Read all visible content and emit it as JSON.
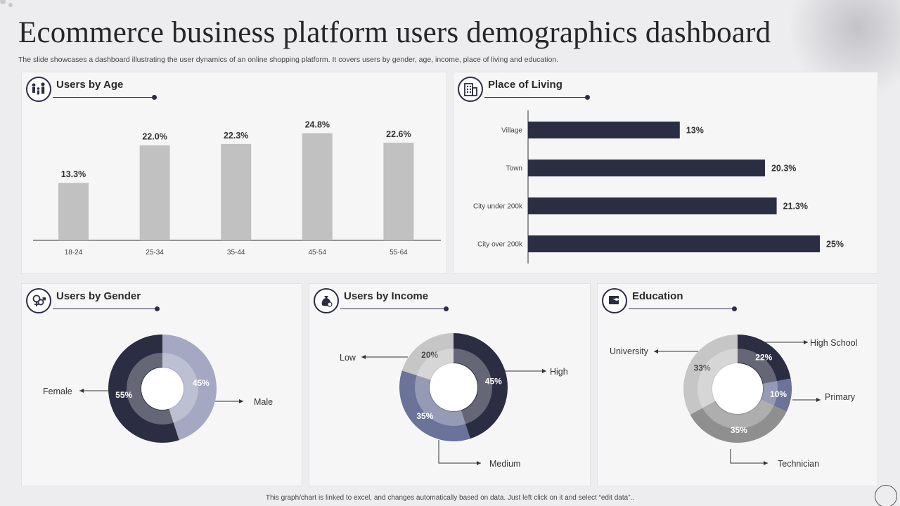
{
  "page": {
    "title": "Ecommerce business platform users demographics dashboard",
    "subtitle": "The slide showcases a dashboard illustrating the user dynamics of an online shopping platform. It covers users by gender, age, income, place of living and education.",
    "footer": "This graph/chart is linked to excel, and changes automatically based on data. Just left click on it and select “edit data”.."
  },
  "panels": {
    "age": {
      "title": "Users by Age",
      "icon": "family-icon"
    },
    "living": {
      "title": "Place of Living",
      "icon": "building-icon"
    },
    "gender": {
      "title": "Users by Gender",
      "icon": "gender-icon"
    },
    "income": {
      "title": "Users by Income",
      "icon": "money-bag-icon"
    },
    "education": {
      "title": "Education",
      "icon": "graduation-icon"
    }
  },
  "colors": {
    "dark": "#2b2d42",
    "mid": "#6c7399",
    "light": "#a4a8c2",
    "grey": "#c0c0c0",
    "mid_grey": "#8f8f8f",
    "grey_light": "#c6c6c6",
    "bar_grey": "#c1c1c1"
  },
  "chart_data": [
    {
      "id": "age",
      "type": "bar",
      "categories": [
        "18-24",
        "25-34",
        "35-44",
        "45-54",
        "55-64"
      ],
      "values": [
        13.3,
        22.0,
        22.3,
        24.8,
        22.6
      ],
      "labels": [
        "13.3%",
        "22.0%",
        "22.3%",
        "24.8%",
        "22.6%"
      ],
      "ylim": [
        0,
        30
      ]
    },
    {
      "id": "living",
      "type": "bar",
      "orientation": "horizontal",
      "categories": [
        "Village",
        "Town",
        "City under 200k",
        "City over 200k"
      ],
      "values": [
        13,
        20.3,
        21.3,
        25
      ],
      "labels": [
        "13%",
        "20.3%",
        "21.3%",
        "25%"
      ],
      "xlim": [
        0,
        25
      ]
    },
    {
      "id": "gender",
      "type": "pie",
      "donut": true,
      "slices": [
        {
          "name": "Male",
          "value": 45,
          "label": "45%",
          "color": "#a4a8c2"
        },
        {
          "name": "Female",
          "value": 55,
          "label": "55%",
          "color": "#2b2d42"
        }
      ]
    },
    {
      "id": "income",
      "type": "pie",
      "donut": true,
      "slices": [
        {
          "name": "High",
          "value": 45,
          "label": "45%",
          "color": "#2b2d42"
        },
        {
          "name": "Medium",
          "value": 35,
          "label": "35%",
          "color": "#6c7399"
        },
        {
          "name": "Low",
          "value": 20,
          "label": "20%",
          "color": "#c6c6c6"
        }
      ]
    },
    {
      "id": "education",
      "type": "pie",
      "donut": true,
      "slices": [
        {
          "name": "High School",
          "value": 22,
          "label": "22%",
          "color": "#2b2d42"
        },
        {
          "name": "Primary",
          "value": 10,
          "label": "10%",
          "color": "#6c7399"
        },
        {
          "name": "Technician",
          "value": 35,
          "label": "35%",
          "color": "#8f8f8f"
        },
        {
          "name": "University",
          "value": 33,
          "label": "33%",
          "color": "#c6c6c6"
        }
      ]
    }
  ]
}
